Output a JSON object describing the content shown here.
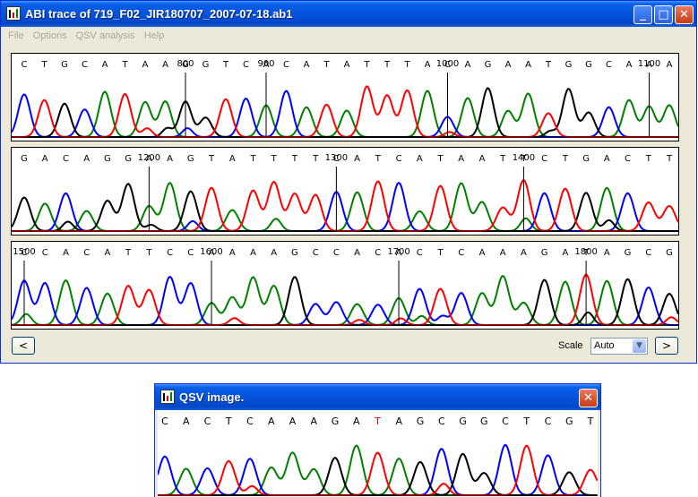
{
  "main_window": {
    "title": "ABI trace of 719_F02_JIR180707_2007-07-18.ab1",
    "menu": [
      "File",
      "Options",
      "QSV analysis",
      "Help"
    ],
    "minimize_glyph": "_",
    "maximize_glyph": "□",
    "close_glyph": "✕",
    "prev_glyph": "<",
    "next_glyph": ">",
    "scale_label": "Scale",
    "scale_value": "Auto"
  },
  "qsv_window": {
    "title": "QSV image.",
    "close_glyph": "✕"
  },
  "colors": {
    "A": "#008000",
    "C": "#0000ff",
    "G": "#000000",
    "T": "#ff0000",
    "N": "#ff0000"
  },
  "chart_data": [
    {
      "type": "line",
      "panel": 1,
      "bases": "CTGCATAAGGTCACATATTTACAGAATGGCAAA",
      "position_labels": [
        {
          "label": "800",
          "base_index": 8
        },
        {
          "label": "900",
          "base_index": 12
        },
        {
          "label": "1000",
          "base_index": 21
        },
        {
          "label": "1100",
          "base_index": 31
        }
      ]
    },
    {
      "type": "line",
      "panel": 2,
      "bases": "GACAGGAAGTATTTTCATCATAATTCTGACTT",
      "position_labels": [
        {
          "label": "1200",
          "base_index": 6
        },
        {
          "label": "1300",
          "base_index": 15
        },
        {
          "label": "1400",
          "base_index": 24
        }
      ]
    },
    {
      "type": "line",
      "panel": 3,
      "bases": "CCACATTCCAAAAGCCACACTCAAAGATAGCG",
      "position_labels": [
        {
          "label": "1500",
          "base_index": 0
        },
        {
          "label": "1600",
          "base_index": 9
        },
        {
          "label": "1700",
          "base_index": 18
        },
        {
          "label": "1800",
          "base_index": 27
        }
      ]
    },
    {
      "type": "line",
      "panel": "qsv",
      "bases": "CACTCAAAGATAGCGGCTCGT"
    }
  ]
}
